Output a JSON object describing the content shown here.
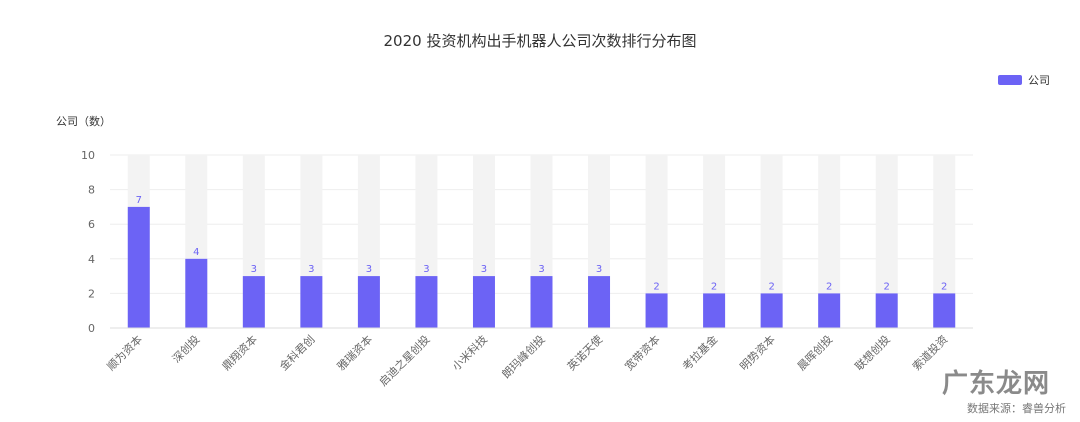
{
  "chart_data": {
    "type": "bar",
    "title": "2020 投资机构出手机器人公司次数排行分布图",
    "ylabel": "公司（数）",
    "xlabel": "",
    "ylim": [
      0,
      10
    ],
    "yticks": [
      0,
      2,
      4,
      6,
      8,
      10
    ],
    "categories": [
      "顺为资本",
      "深创投",
      "鼎翔资本",
      "金科君创",
      "雅瑞资本",
      "启迪之星创投",
      "小米科技",
      "朗玛峰创投",
      "英诺天使",
      "宽带资本",
      "考拉基金",
      "明势资本",
      "晨晖创投",
      "联想创投",
      "索道投资"
    ],
    "series": [
      {
        "name": "公司",
        "values": [
          7,
          4,
          3,
          3,
          3,
          3,
          3,
          3,
          3,
          2,
          2,
          2,
          2,
          2,
          2
        ]
      }
    ],
    "background_bar_max": 10,
    "grid": true,
    "legend_position": "top-right",
    "bar_color": "#6C63F5",
    "background_bar_color": "#F3F3F3"
  },
  "source_note": "数据来源：睿兽分析",
  "watermark_logo": "广东龙网"
}
